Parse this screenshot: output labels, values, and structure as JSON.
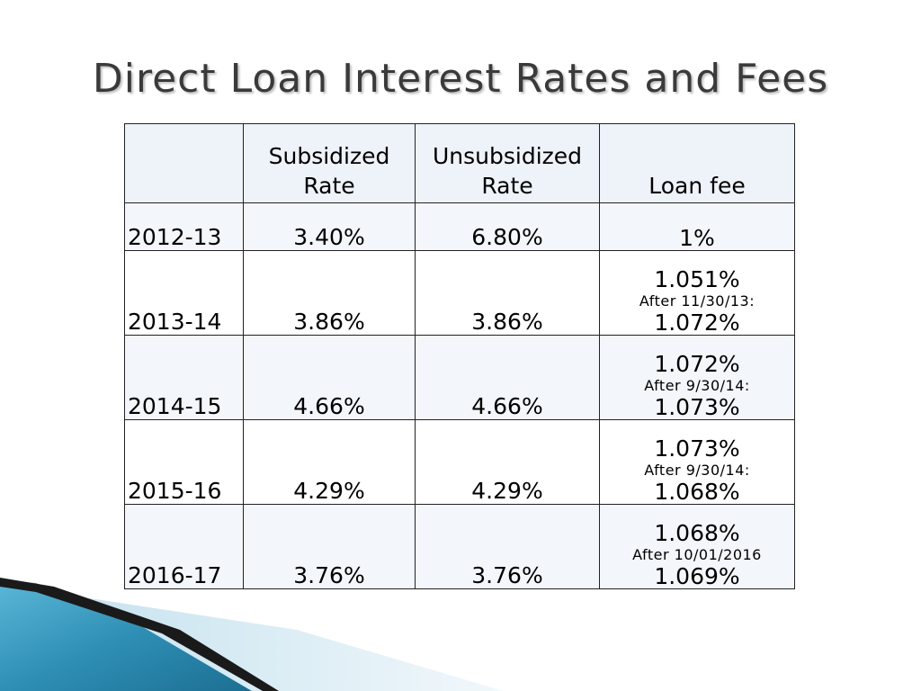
{
  "title": "Direct Loan Interest Rates and Fees",
  "table": {
    "headers": [
      "",
      "Subsidized Rate",
      "Unsubsidized Rate",
      "Loan fee"
    ],
    "header_lines": {
      "subsidized": [
        "Subsidized",
        "Rate"
      ],
      "unsubsidized": [
        "Unsubsidized",
        "Rate"
      ],
      "fee": "Loan fee"
    },
    "rows": [
      {
        "year": "2012-13",
        "subsidized": "3.40%",
        "unsubsidized": "6.80%",
        "fee": "1%"
      },
      {
        "year": "2013-14",
        "subsidized": "3.86%",
        "unsubsidized": "3.86%",
        "fee": "1.051%",
        "fee_note": "After 11/30/13:",
        "fee_after": "1.072%"
      },
      {
        "year": "2014-15",
        "subsidized": "4.66%",
        "unsubsidized": "4.66%",
        "fee": "1.072%",
        "fee_note": "After 9/30/14:",
        "fee_after": "1.073%"
      },
      {
        "year": "2015-16",
        "subsidized": "4.29%",
        "unsubsidized": "4.29%",
        "fee": "1.073%",
        "fee_note": "After 9/30/14:",
        "fee_after": "1.068%"
      },
      {
        "year": "2016-17",
        "subsidized": "3.76%",
        "unsubsidized": "3.76%",
        "fee": "1.068%",
        "fee_note": "After 10/01/2016",
        "fee_after": "1.069%"
      }
    ]
  },
  "colors": {
    "title": "#3a3a3a",
    "header_bg": "#eef2f9",
    "band_bg": "#f3f6fb",
    "accent_blue": "#2f8fb5",
    "accent_dark": "#1a1a1a"
  }
}
